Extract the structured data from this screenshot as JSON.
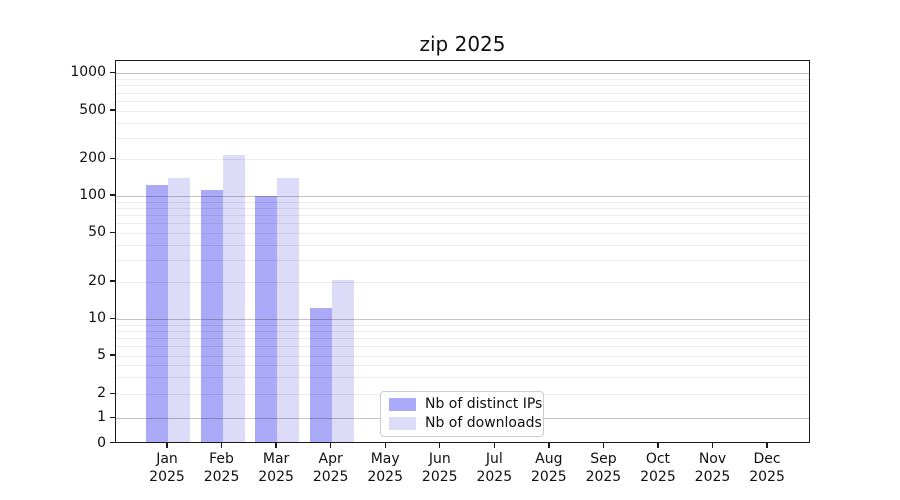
{
  "chart_data": {
    "type": "bar",
    "title": "zip 2025",
    "x_categories": [
      "Jan",
      "Feb",
      "Mar",
      "Apr",
      "May",
      "Jun",
      "Jul",
      "Aug",
      "Sep",
      "Oct",
      "Nov",
      "Dec"
    ],
    "x_year_label": "2025",
    "series": [
      {
        "name": "Nb of distinct IPs",
        "color": "#aaaaf8",
        "values": [
          118,
          107,
          97,
          12,
          0,
          0,
          0,
          0,
          0,
          0,
          0,
          0
        ]
      },
      {
        "name": "Nb of downloads",
        "color": "#dcdcf8",
        "values": [
          135,
          210,
          135,
          20,
          0,
          0,
          0,
          0,
          0,
          0,
          0,
          0
        ]
      }
    ],
    "y_ticks": [
      0,
      1,
      2,
      5,
      10,
      20,
      50,
      100,
      200,
      500,
      1000
    ],
    "y_scale": "symlog",
    "ylim": [
      0,
      1400
    ],
    "grid": "both (major + minor, horizontal)",
    "legend_position": "lower center",
    "colors": {
      "major_grid": "#c4c4c4",
      "minor_grid": "#ececec",
      "spine": "#1a1a1a",
      "background": "#ffffff"
    }
  }
}
